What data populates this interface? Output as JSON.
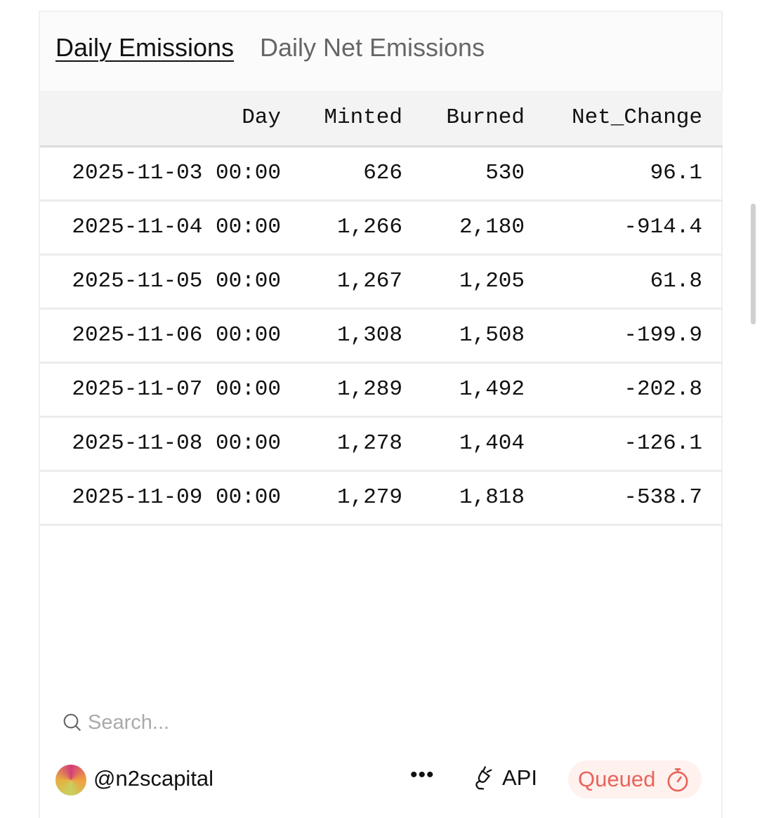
{
  "tabs": [
    {
      "label": "Daily Emissions",
      "active": true
    },
    {
      "label": "Daily Net Emissions",
      "active": false
    }
  ],
  "table": {
    "columns": [
      "Day",
      "Minted",
      "Burned",
      "Net_Change"
    ],
    "rows": [
      [
        "2025-11-03 00:00",
        "626",
        "530",
        "96.1"
      ],
      [
        "2025-11-04 00:00",
        "1,266",
        "2,180",
        "-914.4"
      ],
      [
        "2025-11-05 00:00",
        "1,267",
        "1,205",
        "61.8"
      ],
      [
        "2025-11-06 00:00",
        "1,308",
        "1,508",
        "-199.9"
      ],
      [
        "2025-11-07 00:00",
        "1,289",
        "1,492",
        "-202.8"
      ],
      [
        "2025-11-08 00:00",
        "1,278",
        "1,404",
        "-126.1"
      ],
      [
        "2025-11-09 00:00",
        "1,279",
        "1,818",
        "-538.7"
      ]
    ]
  },
  "search": {
    "placeholder": "Search..."
  },
  "footer": {
    "user": "@n2scapital",
    "more": "•••",
    "api_label": "API",
    "status": "Queued",
    "status_color": "#e8645a"
  }
}
